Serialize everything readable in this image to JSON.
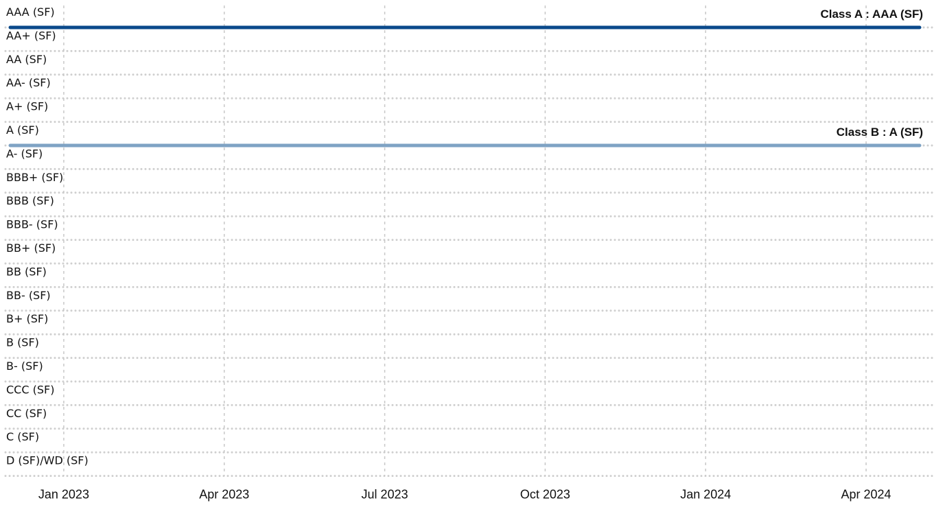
{
  "chart_data": {
    "type": "line",
    "y_categories": [
      "AAA (SF)",
      "AA+ (SF)",
      "AA (SF)",
      "AA- (SF)",
      "A+ (SF)",
      "A (SF)",
      "A- (SF)",
      "BBB+ (SF)",
      "BBB (SF)",
      "BBB- (SF)",
      "BB+ (SF)",
      "BB (SF)",
      "BB- (SF)",
      "B+ (SF)",
      "B (SF)",
      "B- (SF)",
      "CCC (SF)",
      "CC (SF)",
      "C (SF)",
      "D (SF)/WD (SF)"
    ],
    "x": [
      "2022-12",
      "2024-05"
    ],
    "series": [
      {
        "name": "Class A : AAA (SF)",
        "color": "#0b4a8b",
        "values": [
          "AAA (SF)",
          "AAA (SF)"
        ]
      },
      {
        "name": "Class B : A (SF)",
        "color": "#7fa3c4",
        "values": [
          "A (SF)",
          "A (SF)"
        ]
      }
    ],
    "xlim": [
      "2022-12",
      "2024-05"
    ],
    "xticks": [
      {
        "value": "2023-01",
        "label": "Jan 2023"
      },
      {
        "value": "2023-04",
        "label": "Apr 2023"
      },
      {
        "value": "2023-07",
        "label": "Jul 2023"
      },
      {
        "value": "2023-10",
        "label": "Oct 2023"
      },
      {
        "value": "2024-01",
        "label": "Jan 2024"
      },
      {
        "value": "2024-04",
        "label": "Apr 2024"
      }
    ],
    "grid": true
  }
}
